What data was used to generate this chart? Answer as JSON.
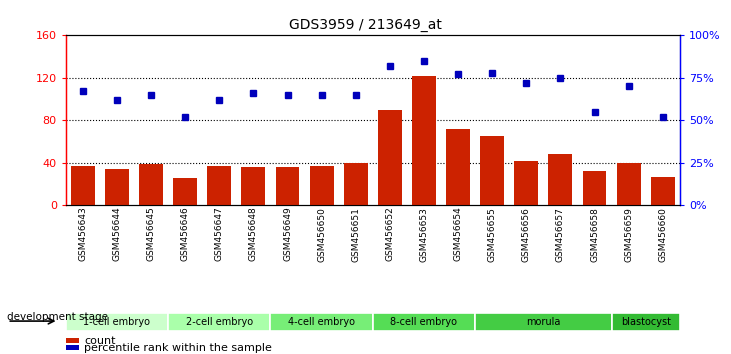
{
  "title": "GDS3959 / 213649_at",
  "samples": [
    "GSM456643",
    "GSM456644",
    "GSM456645",
    "GSM456646",
    "GSM456647",
    "GSM456648",
    "GSM456649",
    "GSM456650",
    "GSM456651",
    "GSM456652",
    "GSM456653",
    "GSM456654",
    "GSM456655",
    "GSM456656",
    "GSM456657",
    "GSM456658",
    "GSM456659",
    "GSM456660"
  ],
  "bar_values": [
    37,
    34,
    39,
    26,
    37,
    36,
    36,
    37,
    40,
    90,
    122,
    72,
    65,
    42,
    48,
    32,
    40,
    27
  ],
  "dot_values_pct": [
    67,
    62,
    65,
    52,
    62,
    66,
    65,
    65,
    65,
    82,
    85,
    77,
    78,
    72,
    75,
    55,
    70,
    52
  ],
  "ylim_left": [
    0,
    160
  ],
  "ylim_right": [
    0,
    100
  ],
  "yticks_left": [
    0,
    40,
    80,
    120,
    160
  ],
  "yticks_right": [
    0,
    25,
    50,
    75,
    100
  ],
  "ytick_labels_left": [
    "0",
    "40",
    "80",
    "120",
    "160"
  ],
  "ytick_labels_right": [
    "0%",
    "25%",
    "50%",
    "75%",
    "100%"
  ],
  "bar_color": "#CC2200",
  "dot_color": "#0000BB",
  "stage_groups": {
    "1-cell embryo": [
      0,
      1,
      2
    ],
    "2-cell embryo": [
      3,
      4,
      5
    ],
    "4-cell embryo": [
      6,
      7,
      8
    ],
    "8-cell embryo": [
      9,
      10,
      11
    ],
    "morula": [
      12,
      13,
      14,
      15
    ],
    "blastocyst": [
      16,
      17
    ]
  },
  "stage_colors": {
    "1-cell embryo": "#ccffcc",
    "2-cell embryo": "#aaffaa",
    "4-cell embryo": "#77ee77",
    "8-cell embryo": "#55dd55",
    "morula": "#44cc44",
    "blastocyst": "#33bb33"
  },
  "xtick_bg": "#d0d0d0",
  "development_stage_label": "development stage",
  "legend_count": "count",
  "legend_pct": "percentile rank within the sample"
}
